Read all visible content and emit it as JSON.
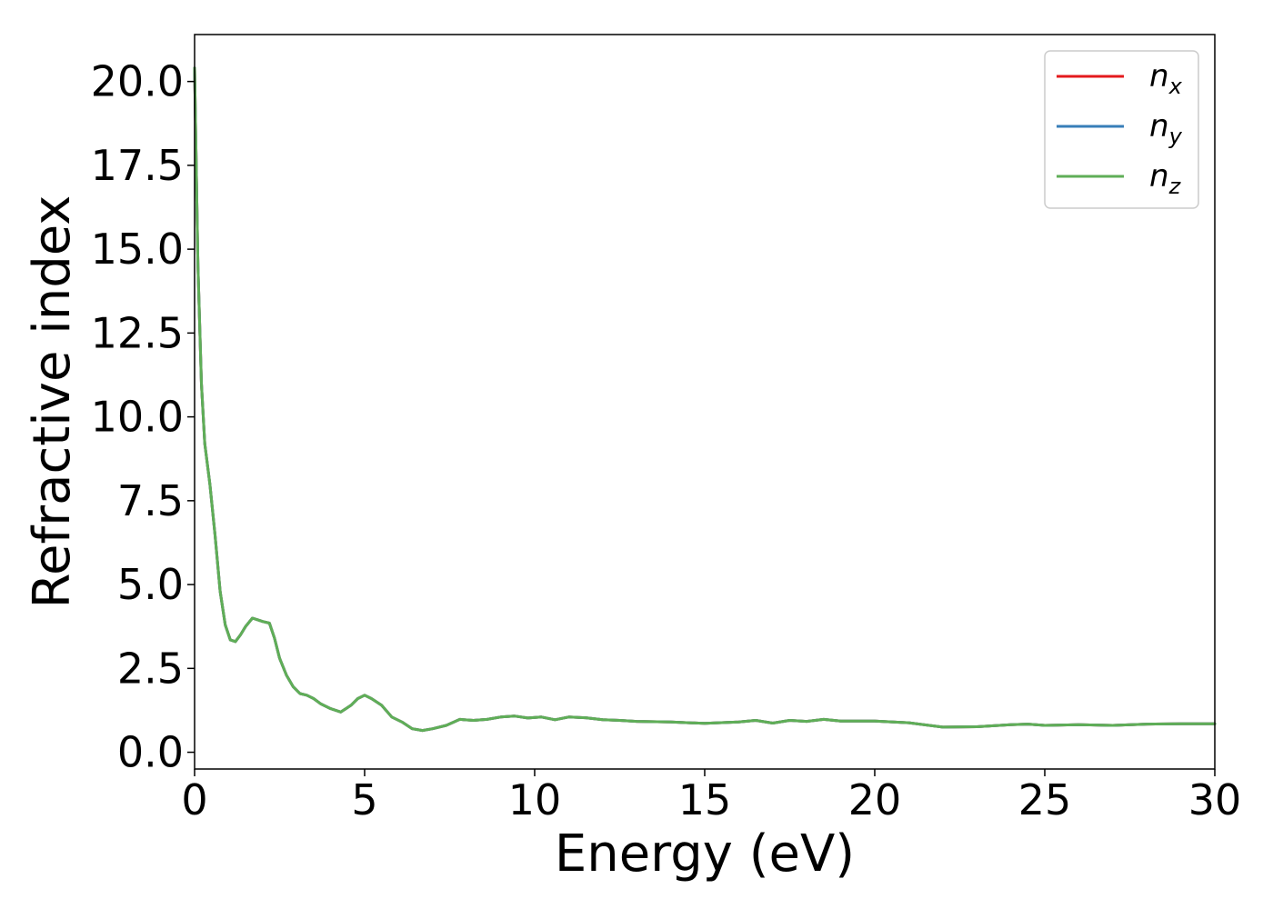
{
  "chart_data": {
    "type": "line",
    "xlabel": "Energy (eV)",
    "ylabel": "Refractive index",
    "xlim": [
      0,
      30
    ],
    "ylim": [
      -0.5,
      21.4
    ],
    "xticks": [
      0,
      5,
      10,
      15,
      20,
      25,
      30
    ],
    "xtick_labels": [
      "0",
      "5",
      "10",
      "15",
      "20",
      "25",
      "30"
    ],
    "yticks": [
      0,
      2.5,
      5,
      7.5,
      10,
      12.5,
      15,
      17.5,
      20
    ],
    "ytick_labels": [
      "0.0",
      "2.5",
      "5.0",
      "7.5",
      "10.0",
      "12.5",
      "15.0",
      "17.5",
      "20.0"
    ],
    "grid": false,
    "legend_position": "top-right",
    "x": [
      0,
      0.1,
      0.2,
      0.3,
      0.45,
      0.6,
      0.75,
      0.9,
      1.05,
      1.2,
      1.35,
      1.5,
      1.7,
      1.85,
      2.0,
      2.2,
      2.35,
      2.5,
      2.7,
      2.9,
      3.1,
      3.3,
      3.5,
      3.7,
      4.0,
      4.3,
      4.6,
      4.8,
      5.0,
      5.2,
      5.5,
      5.8,
      6.1,
      6.4,
      6.7,
      7.0,
      7.4,
      7.8,
      8.2,
      8.6,
      9.0,
      9.4,
      9.8,
      10.2,
      10.6,
      11.0,
      11.5,
      12.0,
      12.5,
      13.0,
      14.0,
      15.0,
      16.0,
      16.5,
      17.0,
      17.5,
      18.0,
      18.5,
      19.0,
      20.0,
      21.0,
      22.0,
      23.0,
      24.0,
      24.5,
      25.0,
      26.0,
      27.0,
      28.0,
      29.0,
      30.0
    ],
    "series": [
      {
        "name": "n_x",
        "legend_main": "n",
        "legend_sub": "x",
        "color": "#e41a1c",
        "values": [
          20.4,
          14.5,
          11.0,
          9.2,
          8.0,
          6.5,
          4.8,
          3.8,
          3.35,
          3.3,
          3.5,
          3.75,
          4.0,
          3.95,
          3.9,
          3.85,
          3.4,
          2.8,
          2.3,
          1.95,
          1.75,
          1.7,
          1.6,
          1.45,
          1.3,
          1.2,
          1.4,
          1.6,
          1.7,
          1.6,
          1.4,
          1.05,
          0.9,
          0.7,
          0.65,
          0.7,
          0.8,
          0.98,
          0.95,
          0.98,
          1.05,
          1.08,
          1.02,
          1.05,
          0.97,
          1.05,
          1.03,
          0.97,
          0.95,
          0.92,
          0.9,
          0.86,
          0.9,
          0.95,
          0.87,
          0.95,
          0.92,
          0.98,
          0.93,
          0.93,
          0.88,
          0.75,
          0.76,
          0.82,
          0.84,
          0.8,
          0.82,
          0.8,
          0.84,
          0.85,
          0.85
        ]
      },
      {
        "name": "n_y",
        "legend_main": "n",
        "legend_sub": "y",
        "color": "#377eb8",
        "values": [
          20.4,
          14.5,
          11.0,
          9.2,
          8.0,
          6.5,
          4.8,
          3.8,
          3.35,
          3.3,
          3.5,
          3.75,
          4.0,
          3.95,
          3.9,
          3.85,
          3.4,
          2.8,
          2.3,
          1.95,
          1.75,
          1.7,
          1.6,
          1.45,
          1.3,
          1.2,
          1.4,
          1.6,
          1.7,
          1.6,
          1.4,
          1.05,
          0.9,
          0.7,
          0.65,
          0.7,
          0.8,
          0.98,
          0.95,
          0.98,
          1.05,
          1.08,
          1.02,
          1.05,
          0.97,
          1.05,
          1.03,
          0.97,
          0.95,
          0.92,
          0.9,
          0.86,
          0.9,
          0.95,
          0.87,
          0.95,
          0.92,
          0.98,
          0.93,
          0.93,
          0.88,
          0.75,
          0.76,
          0.82,
          0.84,
          0.8,
          0.82,
          0.8,
          0.84,
          0.85,
          0.85
        ]
      },
      {
        "name": "n_z",
        "legend_main": "n",
        "legend_sub": "z",
        "color": "#5fae57",
        "values": [
          20.4,
          14.5,
          11.0,
          9.2,
          8.0,
          6.5,
          4.8,
          3.8,
          3.35,
          3.3,
          3.5,
          3.75,
          4.0,
          3.95,
          3.9,
          3.85,
          3.4,
          2.8,
          2.3,
          1.95,
          1.75,
          1.7,
          1.6,
          1.45,
          1.3,
          1.2,
          1.4,
          1.6,
          1.7,
          1.6,
          1.4,
          1.05,
          0.9,
          0.7,
          0.65,
          0.7,
          0.8,
          0.98,
          0.95,
          0.98,
          1.05,
          1.08,
          1.02,
          1.05,
          0.97,
          1.05,
          1.03,
          0.97,
          0.95,
          0.92,
          0.9,
          0.86,
          0.9,
          0.95,
          0.87,
          0.95,
          0.92,
          0.98,
          0.93,
          0.93,
          0.88,
          0.75,
          0.76,
          0.82,
          0.84,
          0.8,
          0.82,
          0.8,
          0.84,
          0.85,
          0.85
        ]
      }
    ]
  }
}
